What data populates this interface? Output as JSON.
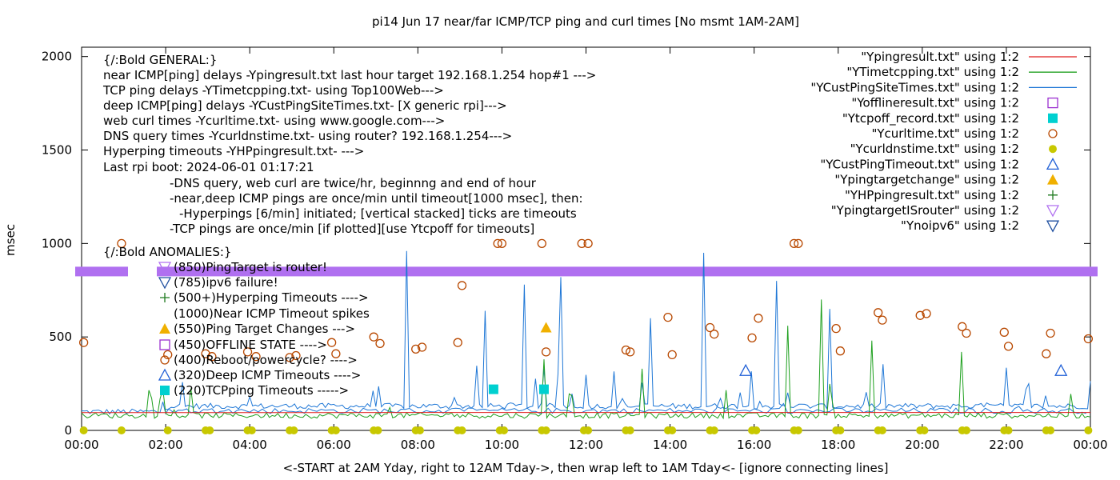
{
  "chart_data": {
    "type": "line",
    "title": "pi14 Jun 17  near/far ICMP/TCP ping and curl times [No msmt 1AM-2AM]",
    "xlabel": "<-START at 2AM Yday, right to 12AM Tday->, then wrap left to 1AM Tday<- [ignore connecting lines]",
    "ylabel": "msec",
    "xlim": [
      0,
      24
    ],
    "ylim": [
      0,
      2050
    ],
    "grid": false,
    "legend_position": "top-right",
    "x_ticks": [
      {
        "v": 0,
        "label": "00:00"
      },
      {
        "v": 2,
        "label": "02:00"
      },
      {
        "v": 4,
        "label": "04:00"
      },
      {
        "v": 6,
        "label": "06:00"
      },
      {
        "v": 8,
        "label": "08:00"
      },
      {
        "v": 10,
        "label": "10:00"
      },
      {
        "v": 12,
        "label": "12:00"
      },
      {
        "v": 14,
        "label": "14:00"
      },
      {
        "v": 16,
        "label": "16:00"
      },
      {
        "v": 18,
        "label": "18:00"
      },
      {
        "v": 20,
        "label": "20:00"
      },
      {
        "v": 22,
        "label": "22:00"
      },
      {
        "v": 24,
        "label": "00:00"
      }
    ],
    "y_ticks": [
      {
        "v": 0,
        "label": "0"
      },
      {
        "v": 500,
        "label": "500"
      },
      {
        "v": 1000,
        "label": "1000"
      },
      {
        "v": 1500,
        "label": "1500"
      },
      {
        "v": 2000,
        "label": "2000"
      }
    ],
    "colors": {
      "ping": "#e01f1f",
      "tcp": "#1fa01f",
      "cust": "#1f77d6",
      "offline": "#9b30d0",
      "tcpoff": "#00d0d0",
      "curl": "#b84800",
      "dns": "#c8c800",
      "custTimeout": "#1f5fd6",
      "targetChange": "#f0b000",
      "hp": "#1f7a1f",
      "router": "#b070f0",
      "noipv6": "#1f4fa0"
    },
    "annotations": [
      "{/:Bold GENERAL:}",
      "near ICMP[ping] delays -Ypingresult.txt last hour target 192.168.1.254 hop#1 --->",
      "TCP ping delays -YTimetcpping.txt- using Top100Web--->",
      "deep ICMP[ping] delays -YCustPingSiteTimes.txt- [X generic rpi]--->",
      "web curl times -Ycurltime.txt- using www.google.com--->",
      "DNS query times -Ycurldnstime.txt- using router? 192.168.1.254--->",
      "Hyperping timeouts -YHPpingresult.txt- --->",
      "Last rpi boot: 2024-06-01 01:17:21",
      "-DNS query, web curl are twice/hr, beginnng and end of hour",
      "-near,deep ICMP pings are once/min until timeout[1000 msec], then:",
      "-Hyperpings [6/min] initiated; [vertical stacked] ticks are timeouts",
      "-TCP pings are once/min [if plotted][use Ytcpoff for timeouts]",
      "{/:Bold ANOMALIES:}",
      "(850)PingTarget is router!",
      "(785)ipv6 failure!",
      "(500+)Hyperping Timeouts ---->",
      "(1000)Near ICMP Timeout spikes",
      "(550)Ping Target Changes --->",
      "(450)OFFLINE STATE ---->",
      "(400)Reboot/powercycle? ---->",
      "(320)Deep ICMP Timeouts ---->",
      "(220)TCPping Timeouts ----->"
    ],
    "series": [
      {
        "name": "\"Ypingresult.txt\" using 1:2",
        "style": "line",
        "color": "#e01f1f",
        "values": [
          [
            0,
            95
          ],
          [
            2,
            95
          ],
          [
            12,
            96
          ],
          [
            24,
            96
          ]
        ]
      },
      {
        "name": "\"YTimetcpping.txt\" using 1:2",
        "style": "line",
        "color": "#1fa01f",
        "approx_points": [
          [
            0,
            80
          ],
          [
            2,
            78
          ],
          [
            4,
            82
          ],
          [
            6,
            80
          ],
          [
            8,
            85
          ],
          [
            10,
            78
          ],
          [
            11,
            250
          ],
          [
            12,
            82
          ],
          [
            14,
            80
          ],
          [
            16,
            90
          ],
          [
            17.6,
            700
          ],
          [
            18,
            120
          ],
          [
            20,
            90
          ],
          [
            22,
            85
          ],
          [
            24,
            80
          ]
        ]
      },
      {
        "name": "\"YCustPingSiteTimes.txt\" using 1:2",
        "style": "line",
        "color": "#1f77d6",
        "approx_points": [
          [
            0,
            120
          ],
          [
            2,
            110
          ],
          [
            4,
            140
          ],
          [
            6,
            120
          ],
          [
            7.7,
            960
          ],
          [
            8,
            130
          ],
          [
            10,
            120
          ],
          [
            11.4,
            820
          ],
          [
            12,
            150
          ],
          [
            14,
            130
          ],
          [
            14.8,
            950
          ],
          [
            15,
            150
          ],
          [
            16.5,
            800
          ],
          [
            18,
            140
          ],
          [
            20,
            150
          ],
          [
            22,
            140
          ],
          [
            24,
            130
          ]
        ]
      },
      {
        "name": "\"Yofflineresult.txt\" using 1:2",
        "style": "open-square",
        "color": "#9b30d0",
        "values": []
      },
      {
        "name": "\"Ytcpoff_record.txt\" using 1:2",
        "style": "filled-square",
        "color": "#00d0d0",
        "values": [
          [
            9.8,
            220
          ],
          [
            11.0,
            220
          ]
        ]
      },
      {
        "name": "\"Ycurltime.txt\" using 1:2",
        "style": "open-circle",
        "color": "#b84800",
        "values": [
          [
            0.05,
            470
          ],
          [
            0.95,
            1000
          ],
          [
            2.05,
            405
          ],
          [
            2.95,
            410
          ],
          [
            3.1,
            395
          ],
          [
            3.95,
            420
          ],
          [
            4.15,
            395
          ],
          [
            4.95,
            390
          ],
          [
            5.1,
            400
          ],
          [
            5.95,
            470
          ],
          [
            6.05,
            410
          ],
          [
            6.95,
            500
          ],
          [
            7.1,
            465
          ],
          [
            7.95,
            435
          ],
          [
            8.1,
            445
          ],
          [
            8.95,
            470
          ],
          [
            9.05,
            775
          ],
          [
            9.9,
            1000
          ],
          [
            10.0,
            1000
          ],
          [
            10.95,
            1000
          ],
          [
            11.05,
            420
          ],
          [
            11.9,
            1000
          ],
          [
            12.05,
            1000
          ],
          [
            12.95,
            430
          ],
          [
            13.05,
            420
          ],
          [
            13.95,
            605
          ],
          [
            14.05,
            405
          ],
          [
            14.95,
            550
          ],
          [
            15.05,
            515
          ],
          [
            15.95,
            495
          ],
          [
            16.1,
            600
          ],
          [
            16.95,
            1000
          ],
          [
            17.05,
            1000
          ],
          [
            17.95,
            545
          ],
          [
            18.05,
            425
          ],
          [
            18.95,
            630
          ],
          [
            19.05,
            590
          ],
          [
            19.95,
            615
          ],
          [
            20.1,
            625
          ],
          [
            20.95,
            555
          ],
          [
            21.05,
            520
          ],
          [
            21.95,
            525
          ],
          [
            22.05,
            450
          ],
          [
            22.95,
            410
          ],
          [
            23.05,
            520
          ],
          [
            23.95,
            490
          ]
        ]
      },
      {
        "name": "\"Ycurldnstime.txt\" using 1:2",
        "style": "filled-circle",
        "color": "#c8c800",
        "values": [
          [
            0.05,
            0
          ],
          [
            0.95,
            0
          ],
          [
            2.05,
            0
          ],
          [
            2.95,
            0
          ],
          [
            3.05,
            0
          ],
          [
            3.95,
            0
          ],
          [
            4.05,
            0
          ],
          [
            4.95,
            0
          ],
          [
            5.05,
            0
          ],
          [
            5.95,
            0
          ],
          [
            6.05,
            0
          ],
          [
            6.95,
            0
          ],
          [
            7.05,
            0
          ],
          [
            7.95,
            0
          ],
          [
            8.05,
            0
          ],
          [
            8.95,
            0
          ],
          [
            9.05,
            0
          ],
          [
            9.95,
            0
          ],
          [
            10.05,
            0
          ],
          [
            10.95,
            0
          ],
          [
            11.05,
            0
          ],
          [
            11.95,
            0
          ],
          [
            12.05,
            0
          ],
          [
            12.95,
            0
          ],
          [
            13.05,
            0
          ],
          [
            13.95,
            0
          ],
          [
            14.05,
            0
          ],
          [
            14.95,
            0
          ],
          [
            15.05,
            0
          ],
          [
            15.95,
            0
          ],
          [
            16.05,
            0
          ],
          [
            16.95,
            0
          ],
          [
            17.05,
            0
          ],
          [
            17.95,
            0
          ],
          [
            18.05,
            0
          ],
          [
            18.95,
            0
          ],
          [
            19.05,
            0
          ],
          [
            19.95,
            0
          ],
          [
            20.05,
            0
          ],
          [
            20.95,
            0
          ],
          [
            21.05,
            0
          ],
          [
            21.95,
            0
          ],
          [
            22.05,
            0
          ],
          [
            22.95,
            0
          ],
          [
            23.05,
            0
          ],
          [
            23.95,
            0
          ]
        ]
      },
      {
        "name": "\"YCustPingTimeout.txt\" using 1:2",
        "style": "open-triangle",
        "color": "#1f5fd6",
        "values": [
          [
            15.8,
            320
          ],
          [
            23.3,
            320
          ]
        ]
      },
      {
        "name": "\"Ypingtargetchange\" using 1:2",
        "style": "filled-triangle",
        "color": "#f0b000",
        "values": [
          [
            11.05,
            550
          ]
        ]
      },
      {
        "name": "\"YHPpingresult.txt\" using 1:2",
        "style": "plus",
        "color": "#1f7a1f",
        "values": []
      },
      {
        "name": "\"YpingtargetISrouter\" using 1:2",
        "style": "down-triangle",
        "color": "#b070f0",
        "values": "continuous at 850 across 0:00-24:00"
      },
      {
        "name": "\"Ynoipv6\" using 1:2",
        "style": "open-down-triangle",
        "color": "#1f4fa0",
        "values": []
      }
    ]
  }
}
